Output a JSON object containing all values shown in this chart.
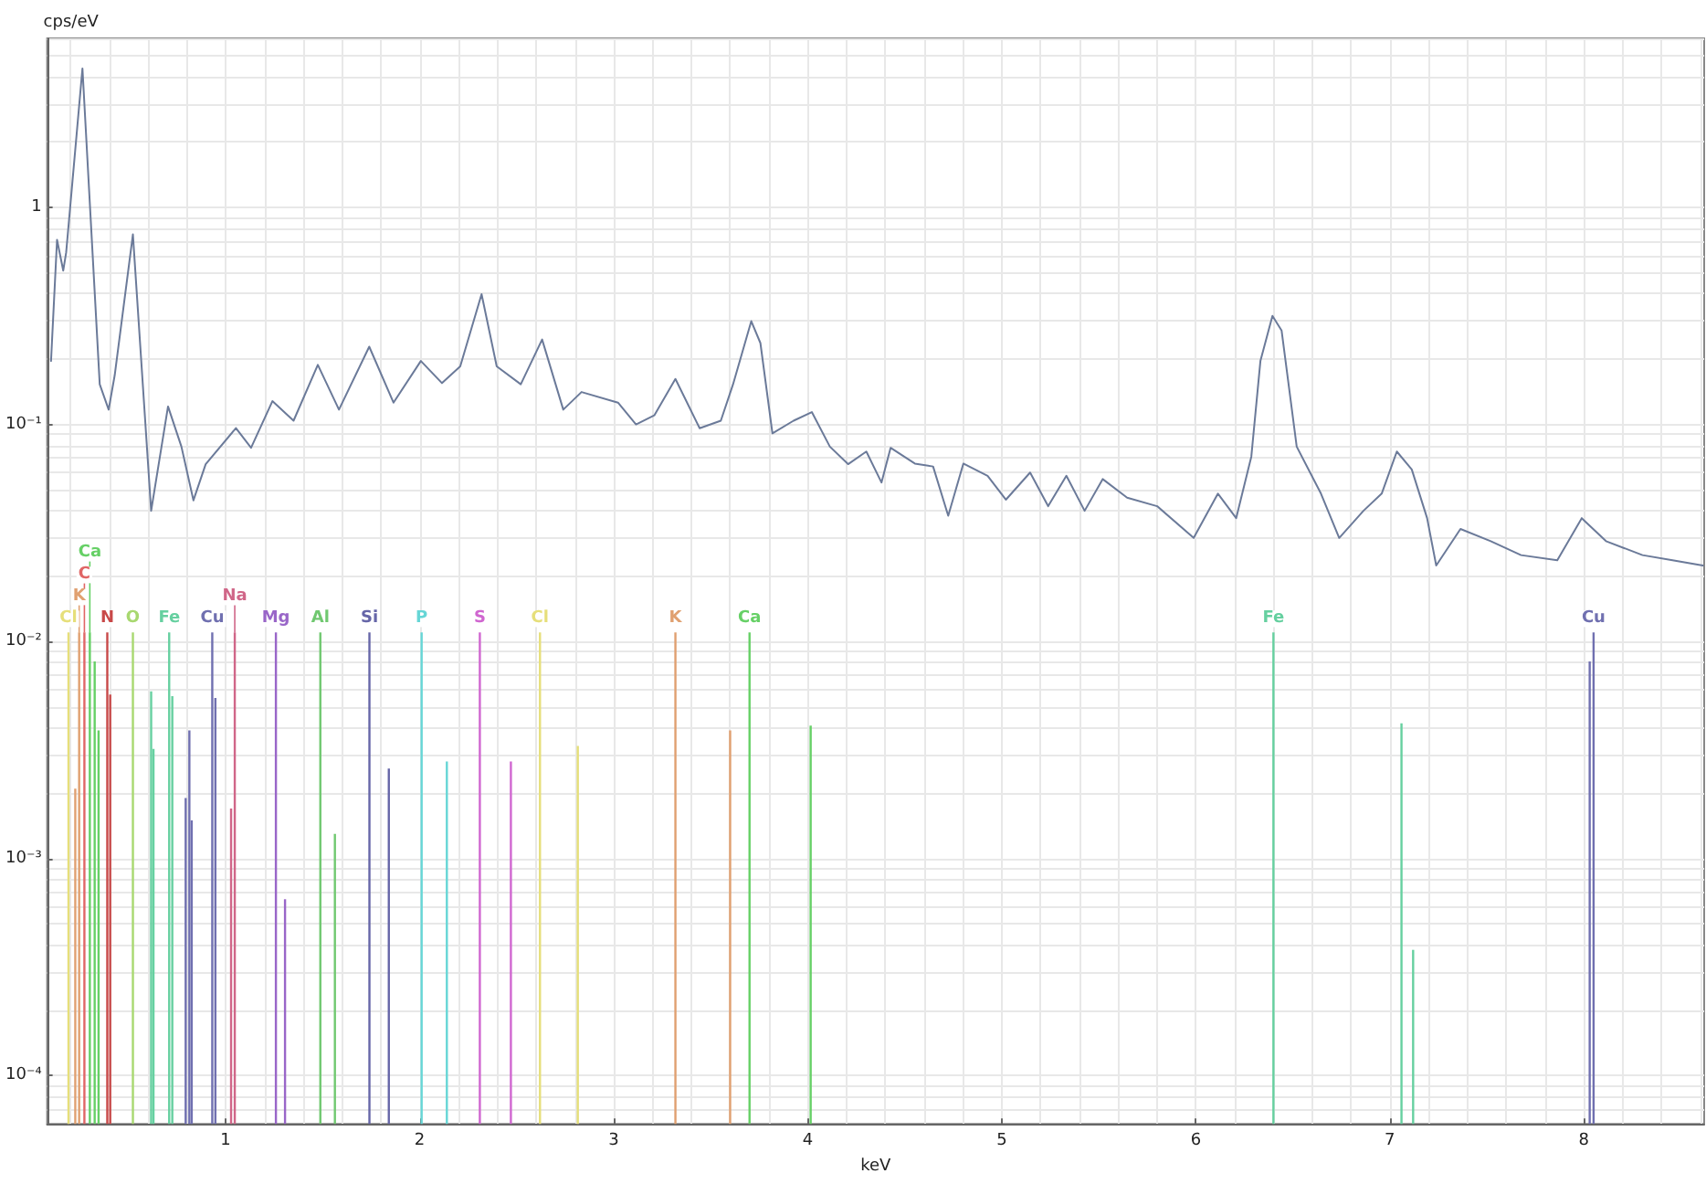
{
  "chart_data": {
    "type": "line",
    "xlabel": "keV",
    "ylabel": "cps/eV",
    "log": "y",
    "grid": true,
    "marker": "none",
    "line_style": "solid",
    "xlim": [
      0.08,
      8.62
    ],
    "xticks": [
      1,
      2,
      3,
      4,
      5,
      6,
      7,
      8
    ],
    "ylim": [
      6e-05,
      6
    ],
    "yticks": [
      {
        "value": 0.0001,
        "label": "10⁻⁴"
      },
      {
        "value": 0.001,
        "label": "10⁻³"
      },
      {
        "value": 0.01,
        "label": "10⁻²"
      },
      {
        "value": 0.1,
        "label": "10⁻¹"
      },
      1
    ],
    "series": [
      {
        "color": "#6b7a99",
        "x": [
          0.1,
          0.131,
          0.163,
          0.178,
          0.262,
          0.351,
          0.397,
          0.428,
          0.522,
          0.616,
          0.703,
          0.772,
          0.834,
          0.897,
          1.053,
          1.131,
          1.241,
          1.35,
          1.475,
          1.584,
          1.74,
          1.865,
          2.006,
          2.115,
          2.209,
          2.319,
          2.397,
          2.521,
          2.631,
          2.74,
          2.834,
          3.022,
          3.115,
          3.209,
          3.318,
          3.443,
          3.552,
          3.615,
          3.709,
          3.756,
          3.818,
          3.927,
          4.021,
          4.114,
          4.208,
          4.302,
          4.38,
          4.427,
          4.552,
          4.646,
          4.724,
          4.802,
          4.927,
          5.021,
          5.146,
          5.239,
          5.333,
          5.427,
          5.52,
          5.646,
          5.801,
          5.989,
          6.114,
          6.208,
          6.286,
          6.333,
          6.395,
          6.442,
          6.52,
          6.645,
          6.739,
          6.864,
          6.958,
          7.036,
          7.113,
          7.192,
          7.239,
          7.364,
          7.52,
          7.676,
          7.863,
          7.989,
          8.114,
          8.302,
          8.457,
          8.613
        ],
        "values": [
          0.196,
          0.708,
          0.511,
          0.619,
          4.36,
          0.153,
          0.117,
          0.168,
          0.75,
          0.04,
          0.121,
          0.079,
          0.0447,
          0.0656,
          0.0962,
          0.078,
          0.128,
          0.104,
          0.188,
          0.117,
          0.228,
          0.126,
          0.196,
          0.155,
          0.185,
          0.398,
          0.185,
          0.153,
          0.246,
          0.117,
          0.141,
          0.126,
          0.1,
          0.11,
          0.162,
          0.096,
          0.104,
          0.153,
          0.299,
          0.237,
          0.091,
          0.104,
          0.114,
          0.079,
          0.0656,
          0.075,
          0.054,
          0.078,
          0.066,
          0.064,
          0.038,
          0.066,
          0.058,
          0.045,
          0.06,
          0.042,
          0.058,
          0.04,
          0.056,
          0.046,
          0.042,
          0.03,
          0.048,
          0.037,
          0.071,
          0.196,
          0.316,
          0.271,
          0.079,
          0.048,
          0.03,
          0.04,
          0.048,
          0.075,
          0.062,
          0.037,
          0.0224,
          0.033,
          0.029,
          0.025,
          0.0237,
          0.037,
          0.029,
          0.025,
          0.0237,
          0.0224
        ]
      },
      {
        "type": "bar",
        "name": "Cl",
        "color": "#e6df7a",
        "x": [
          0.19
        ],
        "values": [
          0.011
        ]
      },
      {
        "type": "bar",
        "name": "K",
        "color": "#e0a070",
        "x": [
          0.225,
          0.245
        ],
        "values": [
          0.0021,
          0.011
        ]
      },
      {
        "type": "bar",
        "name": "C",
        "color": "#e06666",
        "x": [
          0.272
        ],
        "values": [
          0.011
        ]
      },
      {
        "type": "bar",
        "name": "Ca",
        "color": "#66d066",
        "x": [
          0.3,
          0.325,
          0.345
        ],
        "values": [
          0.011,
          0.0081,
          0.0039
        ]
      },
      {
        "type": "bar",
        "name": "N",
        "color": "#c84848",
        "x": [
          0.39,
          0.405
        ],
        "values": [
          0.011,
          0.0057
        ]
      },
      {
        "type": "bar",
        "name": "O",
        "color": "#a8d870",
        "x": [
          0.522
        ],
        "values": [
          0.011
        ]
      },
      {
        "type": "bar",
        "name": "Fe",
        "color": "#66d0a0",
        "x": [
          0.616,
          0.628,
          0.709,
          0.725
        ],
        "values": [
          0.0059,
          0.0032,
          0.011,
          0.0056
        ]
      },
      {
        "type": "bar",
        "name": "Cu",
        "color": "#7070b0",
        "x": [
          0.794,
          0.813,
          0.825,
          0.931,
          0.947
        ],
        "values": [
          0.0019,
          0.0039,
          0.0015,
          0.011,
          0.0055
        ]
      },
      {
        "type": "bar",
        "name": "Na",
        "color": "#d06688",
        "x": [
          1.028,
          1.047
        ],
        "values": [
          0.0017,
          0.011
        ]
      },
      {
        "type": "bar",
        "name": "Mg",
        "color": "#9966c8",
        "x": [
          1.259,
          1.306
        ],
        "values": [
          0.011,
          0.00065
        ]
      },
      {
        "type": "bar",
        "name": "Al",
        "color": "#70c870",
        "x": [
          1.488,
          1.563
        ],
        "values": [
          0.011,
          0.0013
        ]
      },
      {
        "type": "bar",
        "name": "Si",
        "color": "#6666a8",
        "x": [
          1.741,
          1.841
        ],
        "values": [
          0.011,
          0.0026
        ]
      },
      {
        "type": "bar",
        "name": "P",
        "color": "#66d6d6",
        "x": [
          2.01,
          2.14
        ],
        "values": [
          0.011,
          0.0028
        ]
      },
      {
        "type": "bar",
        "name": "S",
        "color": "#d066d0",
        "x": [
          2.31,
          2.47
        ],
        "values": [
          0.011,
          0.0028
        ]
      },
      {
        "type": "bar",
        "name": "Cl",
        "color": "#e6df7a",
        "x": [
          2.62,
          2.815
        ],
        "values": [
          0.011,
          0.0033
        ]
      },
      {
        "type": "bar",
        "name": "K",
        "color": "#e0a070",
        "x": [
          3.318,
          3.6
        ],
        "values": [
          0.011,
          0.0039
        ]
      },
      {
        "type": "bar",
        "name": "Ca",
        "color": "#66d066",
        "x": [
          3.7,
          4.015
        ],
        "values": [
          0.011,
          0.0041
        ]
      },
      {
        "type": "bar",
        "name": "Fe",
        "color": "#66d0a0",
        "x": [
          6.4,
          7.06,
          7.12
        ],
        "values": [
          0.011,
          0.0042,
          0.00038
        ]
      },
      {
        "type": "bar",
        "name": "Cu",
        "color": "#7070b0",
        "x": [
          8.03,
          8.05
        ],
        "values": [
          0.0081,
          0.011
        ]
      }
    ]
  }
}
